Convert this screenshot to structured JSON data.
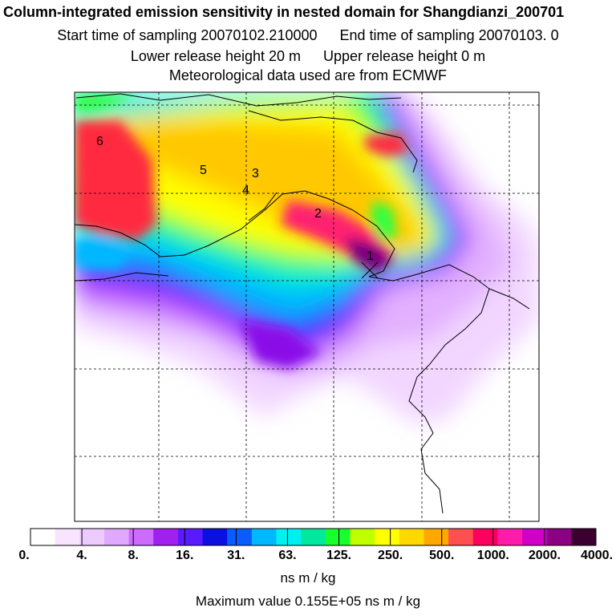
{
  "header": {
    "title": "Column-integrated emission sensitivity in nested domain for Shangdianzi_200701",
    "start_label": "Start time of sampling 20070102.210000",
    "end_label": "End time of sampling 20070103.     0",
    "lower_label": "Lower release height   20 m",
    "upper_label": "Upper release height    0 m",
    "met_label": "Meteorological data used are from ECMWF"
  },
  "map": {
    "trajectory_labels": [
      "1",
      "2",
      "3",
      "4",
      "5",
      "6"
    ]
  },
  "colorbar": {
    "tick_labels": [
      "0.",
      "4.",
      "8.",
      "16.",
      "31.",
      "63.",
      "125.",
      "250.",
      "500.",
      "1000.",
      "2000.",
      "4000."
    ],
    "colors": [
      "#ffffff",
      "#f8e4ff",
      "#eecbff",
      "#e0a8ff",
      "#cc6cff",
      "#a020f0",
      "#5a1aff",
      "#0a10e0",
      "#0a5cff",
      "#00b8ff",
      "#00f0f0",
      "#00e8a0",
      "#18ff30",
      "#c0ff00",
      "#ffff00",
      "#ffd800",
      "#ffa800",
      "#ff5050",
      "#ff0060",
      "#ff1ca8",
      "#d000c8",
      "#8a0080",
      "#3c0030"
    ],
    "units": "ns m / kg",
    "max_value": "Maximum value  0.155E+05 ns m / kg"
  }
}
